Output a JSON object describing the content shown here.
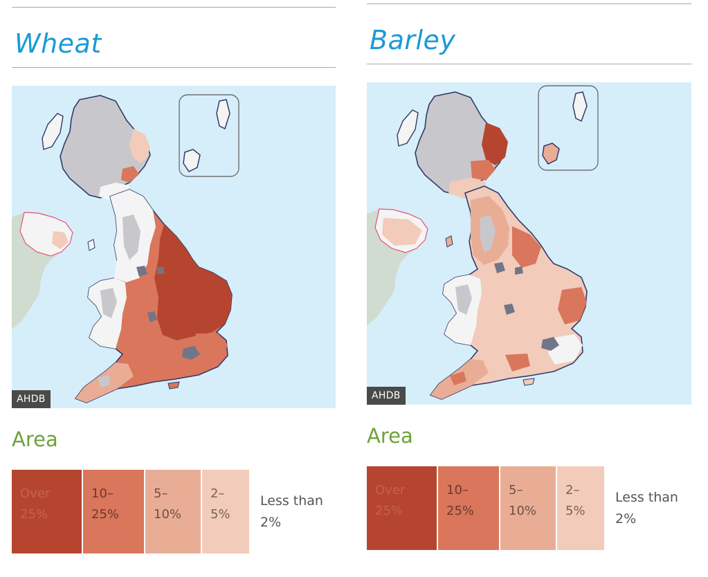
{
  "panels": [
    {
      "title": "Wheat",
      "badge": "AHDB",
      "area_heading": "Area",
      "legend": [
        {
          "label": "Over 25%",
          "color": "#b6452f",
          "text_color": "#c5624b"
        },
        {
          "label": "10–25%",
          "color": "#d9765b",
          "text_color": "#6a3a2e"
        },
        {
          "label": "5–10%",
          "color": "#e9ad96",
          "text_color": "#6d4f45"
        },
        {
          "label": "2–5%",
          "color": "#f2cbbb",
          "text_color": "#776259"
        }
      ],
      "legend_outside": "Less than 2%"
    },
    {
      "title": "Barley",
      "badge": "AHDB",
      "area_heading": "Area",
      "legend": [
        {
          "label": "Over 25%",
          "color": "#b6452f",
          "text_color": "#c5624b"
        },
        {
          "label": "10–25%",
          "color": "#d9765b",
          "text_color": "#6a3a2e"
        },
        {
          "label": "5–10%",
          "color": "#e9ad96",
          "text_color": "#6d4f45"
        },
        {
          "label": "2–5%",
          "color": "#f2cbbb",
          "text_color": "#776259"
        }
      ],
      "legend_outside": "Less than 2%"
    }
  ],
  "colors": {
    "sea": "#d6eef9",
    "upland": "#c8c8cc",
    "urban": "#6f7687",
    "other_land": "#cfdccf",
    "title": "#1a9ad6",
    "heading": "#6ca33a"
  }
}
